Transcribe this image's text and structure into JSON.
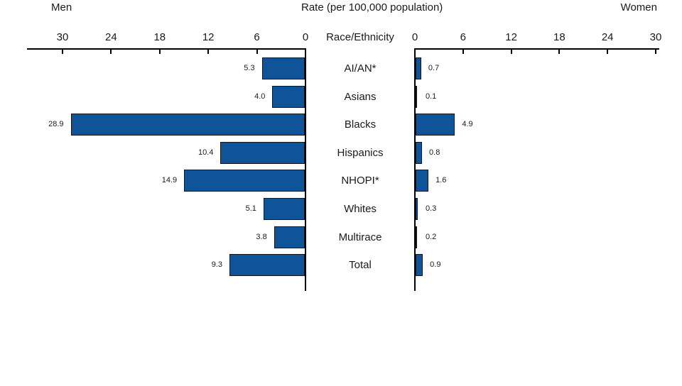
{
  "header": {
    "left_series_label": "Men",
    "title": "Rate (per 100,000 population)",
    "right_series_label": "Women",
    "center_axis_label": "Race/Ethnicity"
  },
  "chart_data": {
    "type": "bar",
    "orientation": "horizontal-diverging",
    "title": "Rate (per 100,000 population)",
    "center_axis_label": "Race/Ethnicity",
    "categories": [
      "AI/AN*",
      "Asians",
      "Blacks",
      "Hispanics",
      "NHOPI*",
      "Whites",
      "Multirace",
      "Total"
    ],
    "series": [
      {
        "name": "Men",
        "side": "left",
        "values": [
          5.3,
          4.0,
          28.9,
          10.4,
          14.9,
          5.1,
          3.8,
          9.3
        ]
      },
      {
        "name": "Women",
        "side": "right",
        "values": [
          0.7,
          0.1,
          4.9,
          0.8,
          1.6,
          0.3,
          0.2,
          0.9
        ]
      }
    ],
    "axis": {
      "left_ticks": [
        30,
        24,
        18,
        12,
        6,
        0
      ],
      "right_ticks": [
        0,
        6,
        12,
        18,
        24,
        30
      ],
      "max": 30,
      "grid": false
    },
    "colors": {
      "bar_fill": "#0f5499",
      "bar_border": "#151515",
      "axis": "#000000",
      "text": "#1a1a1a"
    }
  }
}
